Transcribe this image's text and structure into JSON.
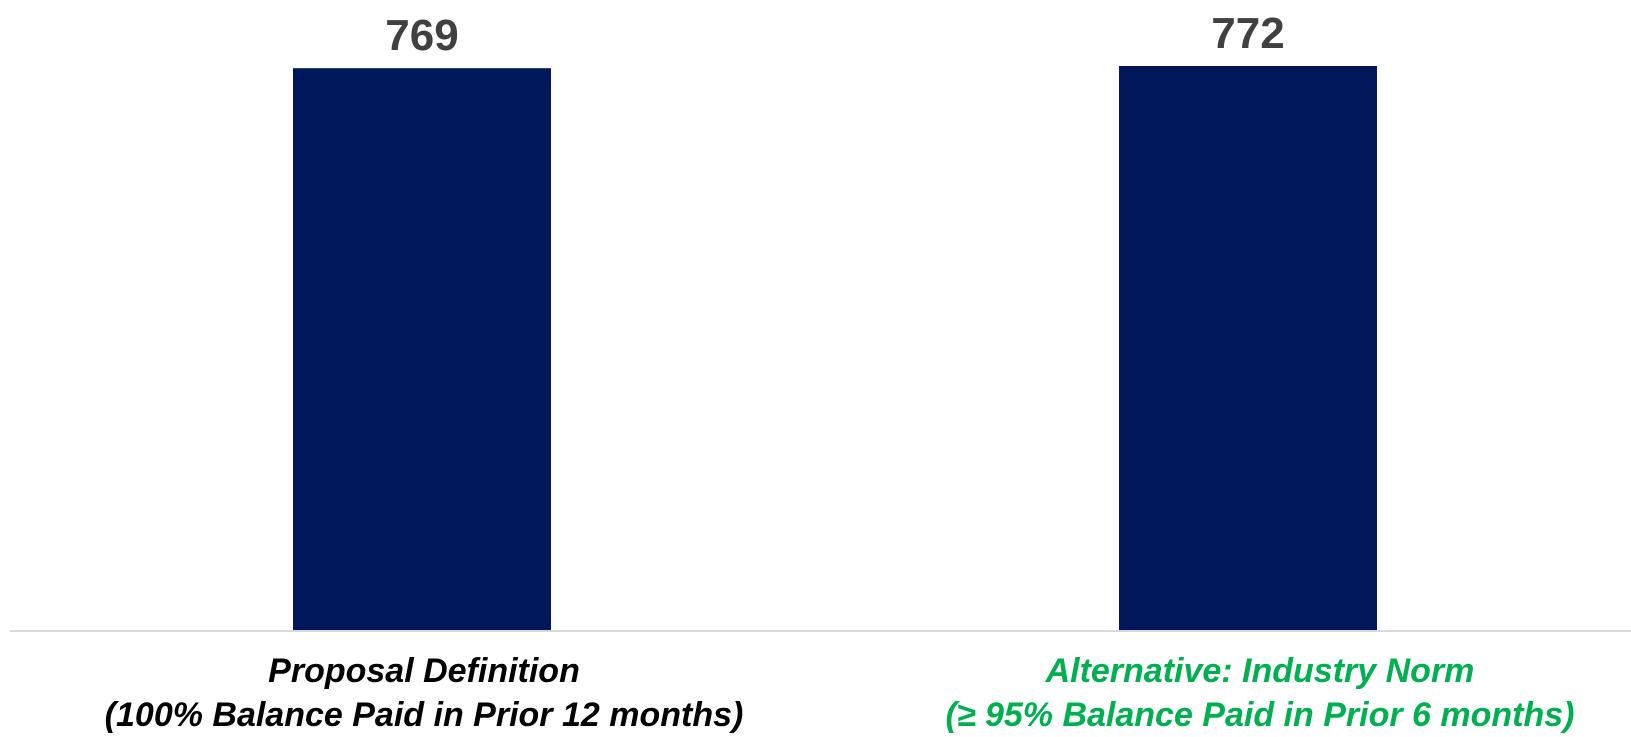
{
  "chart_data": {
    "type": "bar",
    "title": "",
    "xlabel": "",
    "ylabel": "",
    "categories": [
      {
        "line1": "Proposal Definition",
        "line2": "(100% Balance Paid in Prior 12 months)",
        "color": "#000000"
      },
      {
        "line1": "Alternative: Industry Norm",
        "line2": "(≥ 95% Balance Paid in Prior 6 months)",
        "color": "#00b050"
      }
    ],
    "values": [
      769,
      772
    ],
    "value_labels": [
      "769",
      "772"
    ],
    "ylim": [
      0,
      772
    ],
    "grid": false,
    "legend": "none",
    "bar_color": "#001859",
    "label_color": "#404040",
    "axis_color": "#d9d9d9"
  }
}
